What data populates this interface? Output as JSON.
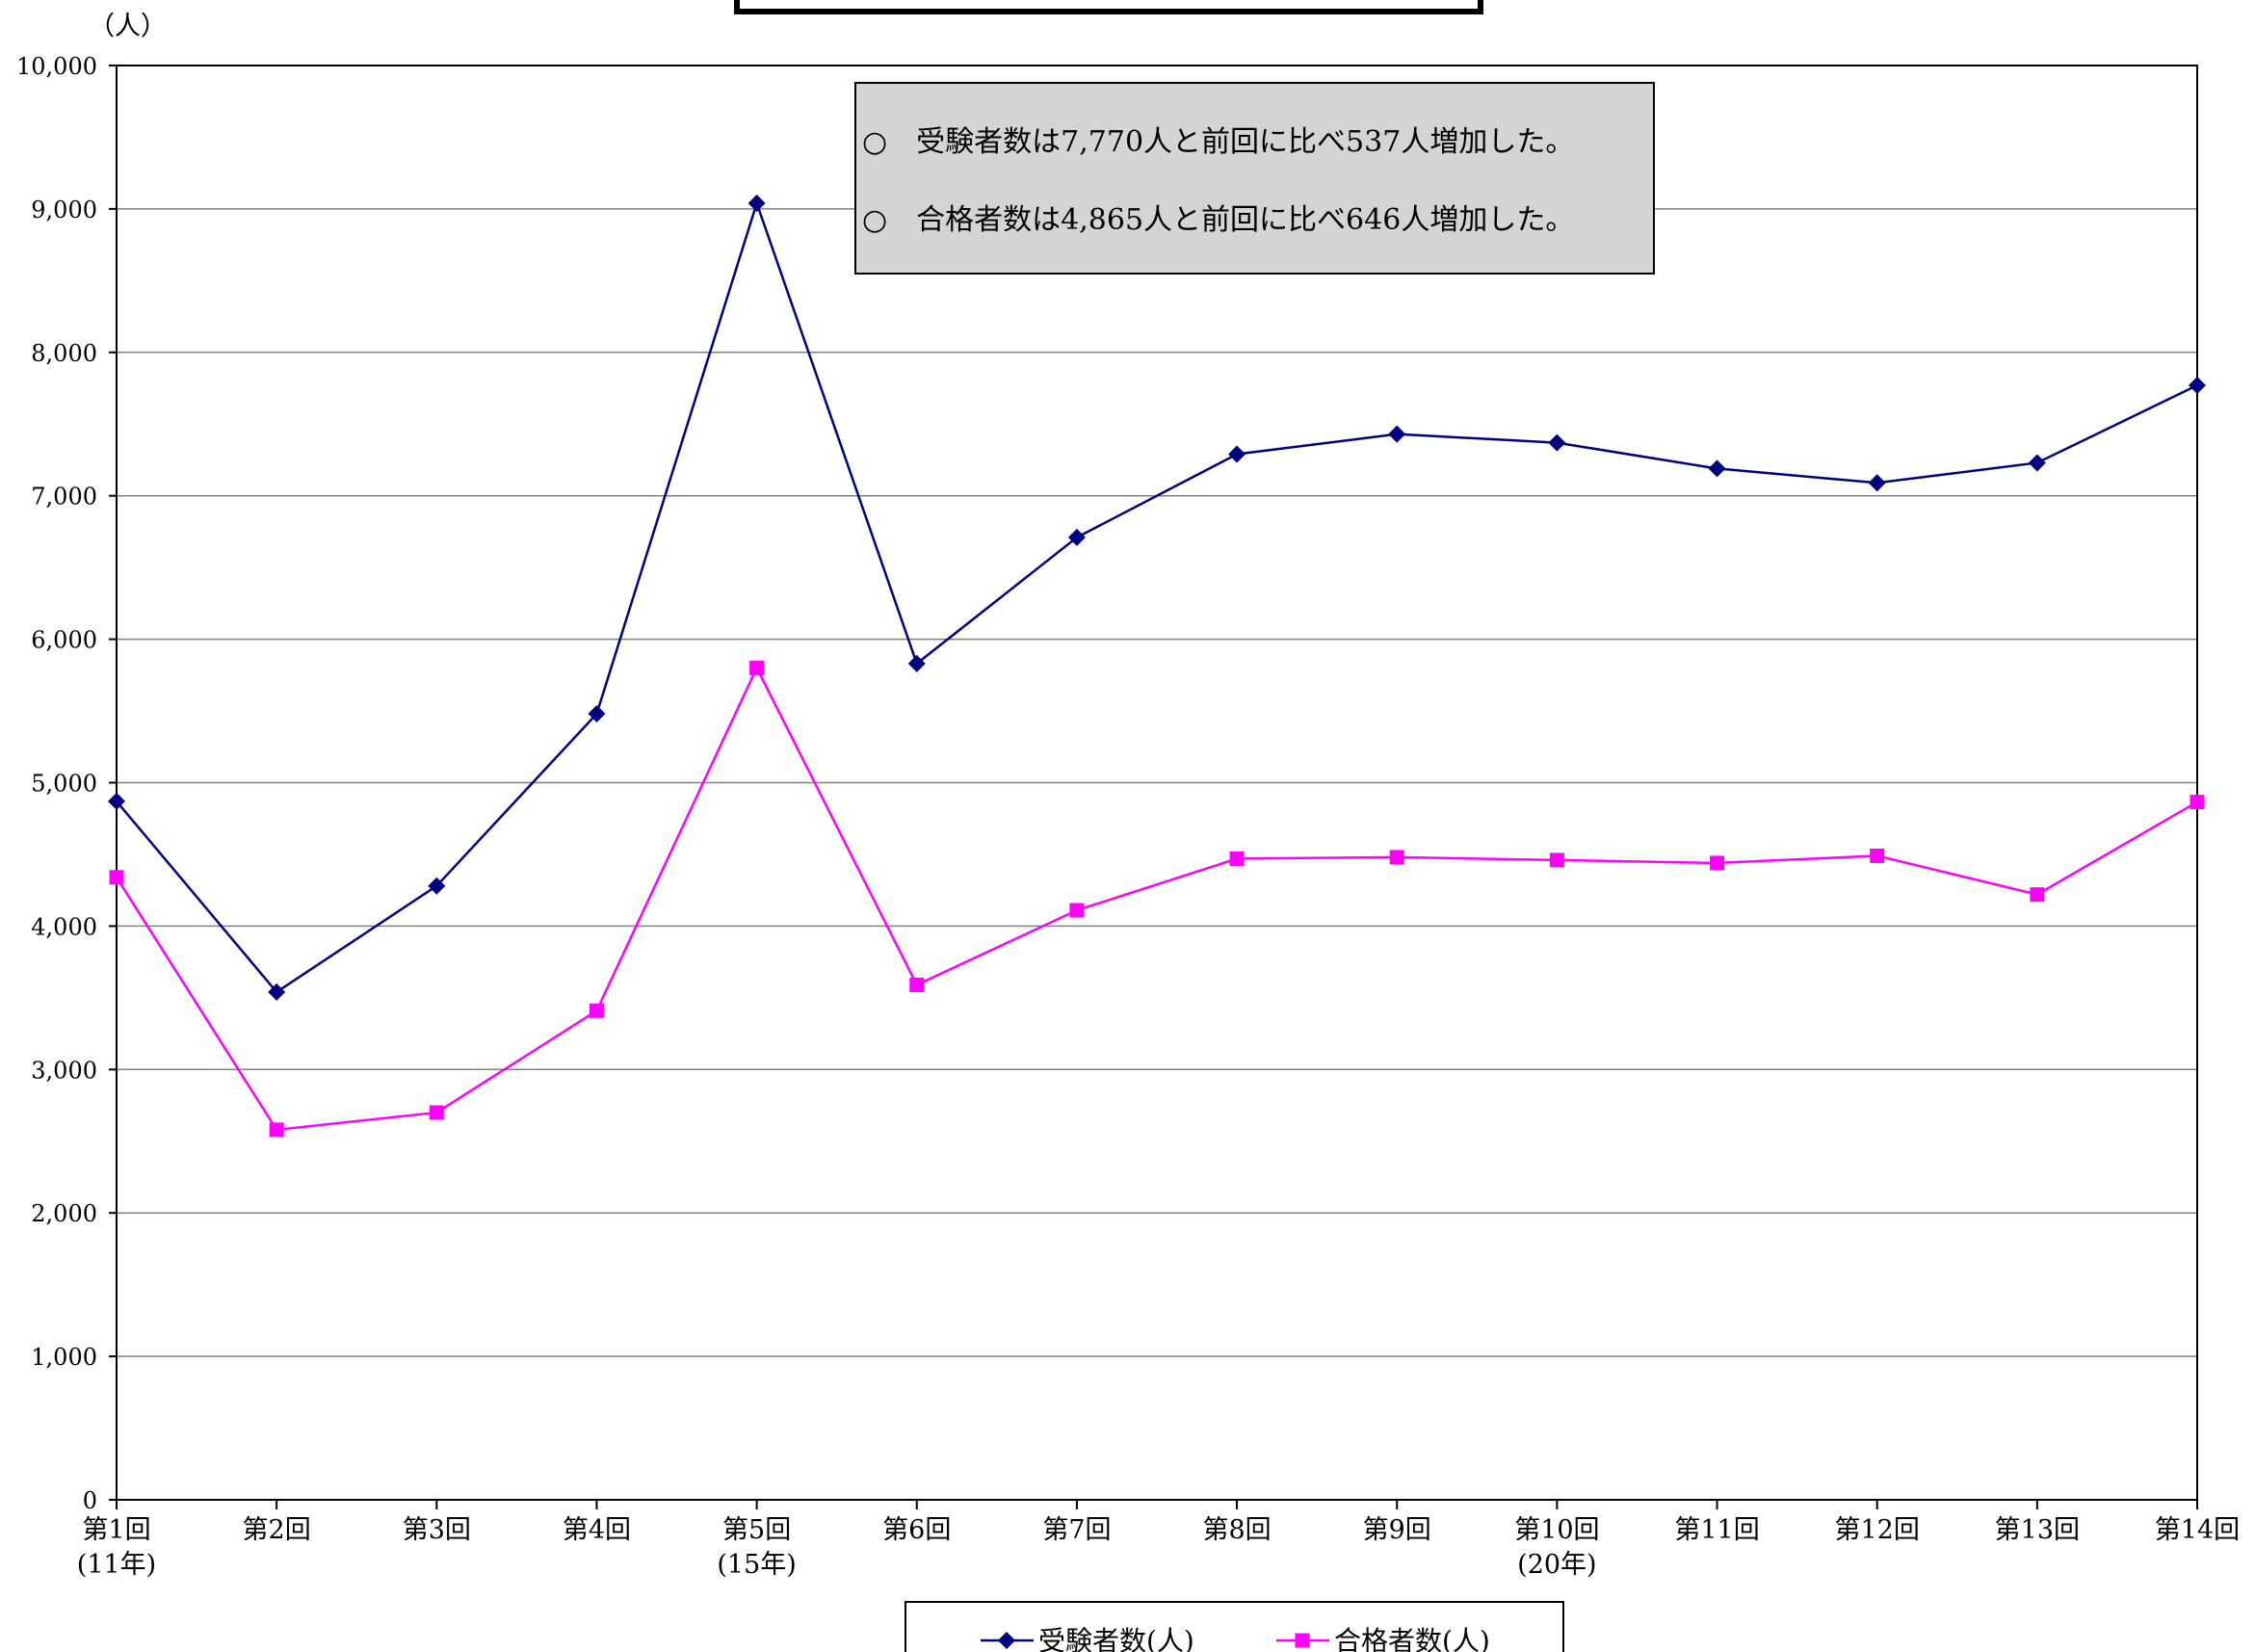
{
  "chart_data": {
    "type": "line",
    "title": "",
    "y_unit_label": "（人）",
    "ylim": [
      0,
      10000
    ],
    "y_ticks": [
      "0",
      "1,000",
      "2,000",
      "3,000",
      "4,000",
      "5,000",
      "6,000",
      "7,000",
      "8,000",
      "9,000",
      "10,000"
    ],
    "y_tick_values": [
      0,
      1000,
      2000,
      3000,
      4000,
      5000,
      6000,
      7000,
      8000,
      9000,
      10000
    ],
    "grid": true,
    "categories": [
      "第1回",
      "第2回",
      "第3回",
      "第4回",
      "第5回",
      "第6回",
      "第7回",
      "第8回",
      "第9回",
      "第10回",
      "第11回",
      "第12回",
      "第13回",
      "第14回"
    ],
    "category_sublabels": [
      "(11年)",
      "",
      "",
      "",
      "(15年)",
      "",
      "",
      "",
      "",
      "(20年)",
      "",
      "",
      "",
      ""
    ],
    "series": [
      {
        "name": "受験者数(人)",
        "color": "#000080",
        "marker": "diamond",
        "values": [
          4870,
          3540,
          4280,
          5480,
          9040,
          5830,
          6710,
          7290,
          7430,
          7370,
          7190,
          7090,
          7230,
          7770
        ]
      },
      {
        "name": "合格者数(人)",
        "color": "#ff00ff",
        "marker": "square",
        "values": [
          4340,
          2580,
          2700,
          3410,
          5800,
          3590,
          4110,
          4470,
          4480,
          4460,
          4440,
          4490,
          4220,
          4865
        ]
      }
    ],
    "annotations": [
      "○　受験者数は7,770人と前回に比べ537人増加した。",
      "○　合格者数は4,865人と前回に比べ646人増加した。"
    ],
    "legend_position": "bottom"
  }
}
